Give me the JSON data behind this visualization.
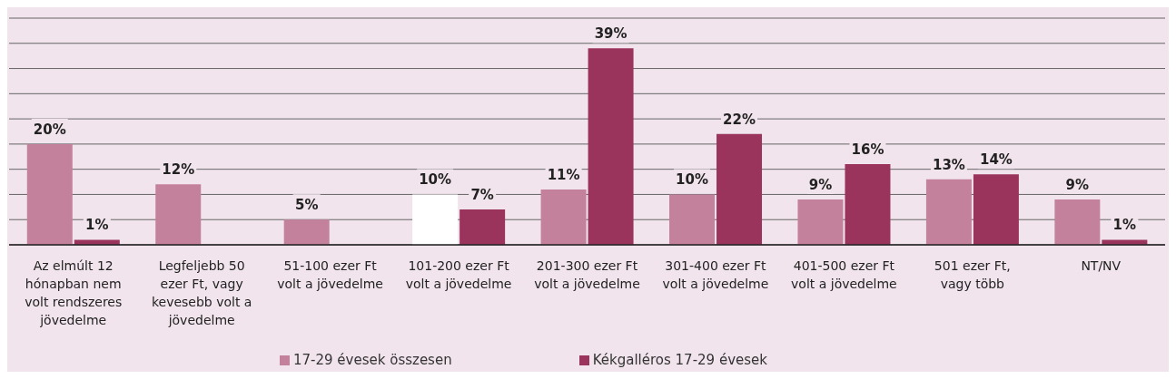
{
  "chart_data": {
    "type": "bar",
    "categories": [
      "Az elmúlt 12 hónapban nem volt rendszeres jövedelme",
      "Legfeljebb 50 ezer Ft, vagy kevesebb volt a jövedelme",
      "51-100 ezer Ft volt a jövedelme",
      "101-200 ezer Ft volt a jövedelme",
      "201-300 ezer Ft volt a jövedelme",
      "301-400 ezer Ft volt a jövedelme",
      "401-500 ezer Ft volt a jövedelme",
      "501 ezer Ft, vagy több",
      "NT/NV"
    ],
    "series": [
      {
        "name": "17-29 évesek összesen",
        "color": "#c4819c",
        "colors": [
          "#c4819c",
          "#c4819c",
          "#c4819c",
          "#ffffff",
          "#c4819c",
          "#c4819c",
          "#c4819c",
          "#c4819c",
          "#c4819c"
        ],
        "values": [
          20,
          12,
          5,
          10,
          11,
          10,
          9,
          13,
          9
        ],
        "value_labels": [
          "20%",
          "12%",
          "5%",
          "10%",
          "11%",
          "10%",
          "9%",
          "13%",
          "9%"
        ]
      },
      {
        "name": "Kékgalléros 17-29 évesek",
        "color": "#9b345c",
        "values": [
          1,
          null,
          null,
          7,
          39,
          22,
          16,
          14,
          1
        ],
        "value_labels": [
          "1%",
          null,
          null,
          "7%",
          "39%",
          "22%",
          "16%",
          "14%",
          "1%"
        ]
      }
    ],
    "ylim": [
      0,
      45
    ],
    "tick_labels": "x",
    "grid": "y",
    "legend": "bottom"
  }
}
